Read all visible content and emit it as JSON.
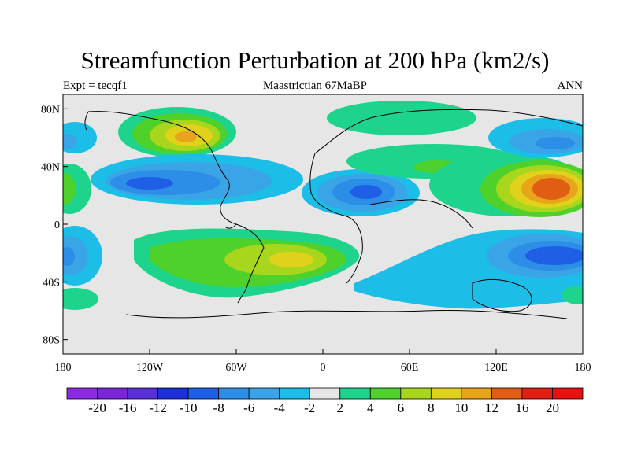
{
  "header": {
    "title": "Streamfunction Perturbation at 200 hPa (km2/s)",
    "left": "Expt = tecqf1",
    "center": "Maastrictian 67MaBP",
    "right": "ANN"
  },
  "map": {
    "lon_ticks": [
      {
        "value": -180,
        "label": "180"
      },
      {
        "value": -120,
        "label": "120W"
      },
      {
        "value": -60,
        "label": "60W"
      },
      {
        "value": 0,
        "label": "0"
      },
      {
        "value": 60,
        "label": "60E"
      },
      {
        "value": 120,
        "label": "120E"
      },
      {
        "value": 180,
        "label": "180"
      }
    ],
    "lat_ticks": [
      {
        "value": 80,
        "label": "80N"
      },
      {
        "value": 40,
        "label": "40N"
      },
      {
        "value": 0,
        "label": "0"
      },
      {
        "value": -40,
        "label": "40S"
      },
      {
        "value": -80,
        "label": "80S"
      }
    ],
    "lon_range": [
      -180,
      180
    ],
    "lat_range": [
      -90,
      90
    ],
    "background_color": "#e6e6e6"
  },
  "colorbar": {
    "levels": [
      "-20",
      "-16",
      "-12",
      "-10",
      "-8",
      "-6",
      "-4",
      "-2",
      "2",
      "4",
      "6",
      "8",
      "10",
      "12",
      "16",
      "20"
    ],
    "colors": [
      "#8a2be2",
      "#7a25d8",
      "#5b2fd6",
      "#1c2fd8",
      "#1f5fe6",
      "#2c8ee6",
      "#3aa5e6",
      "#1cbde6",
      "#e6e6e6",
      "#1ed38c",
      "#4fd12c",
      "#a8d61c",
      "#e0d21a",
      "#e8a41a",
      "#e05e14",
      "#e01e12",
      "#e81010"
    ]
  },
  "chart_data": {
    "type": "heatmap",
    "title": "Streamfunction Perturbation at 200 hPa (km2/s)",
    "cells": [
      {
        "lon": -100,
        "lat": 62,
        "value": 10
      },
      {
        "lon": -110,
        "lat": 60,
        "value": 6
      },
      {
        "lon": -170,
        "lat": 58,
        "value": -4
      },
      {
        "lon": -150,
        "lat": 30,
        "value": -6
      },
      {
        "lon": -130,
        "lat": 28,
        "value": -8
      },
      {
        "lon": -70,
        "lat": 32,
        "value": -4
      },
      {
        "lon": -175,
        "lat": 28,
        "value": 4
      },
      {
        "lon": 25,
        "lat": 22,
        "value": -10
      },
      {
        "lon": 40,
        "lat": 58,
        "value": 4
      },
      {
        "lon": 60,
        "lat": 38,
        "value": 4
      },
      {
        "lon": 90,
        "lat": 40,
        "value": 6
      },
      {
        "lon": 160,
        "lat": 58,
        "value": -6
      },
      {
        "lon": 155,
        "lat": 25,
        "value": 12
      },
      {
        "lon": -175,
        "lat": -22,
        "value": -6
      },
      {
        "lon": -100,
        "lat": -25,
        "value": 4
      },
      {
        "lon": -30,
        "lat": -25,
        "value": 8
      },
      {
        "lon": 140,
        "lat": -22,
        "value": -10
      },
      {
        "lon": 100,
        "lat": -40,
        "value": -4
      },
      {
        "lon": -175,
        "lat": -52,
        "value": 4
      },
      {
        "lon": 175,
        "lat": -52,
        "value": 4
      }
    ],
    "xlim": [
      -180,
      180
    ],
    "ylim": [
      -90,
      90
    ]
  }
}
